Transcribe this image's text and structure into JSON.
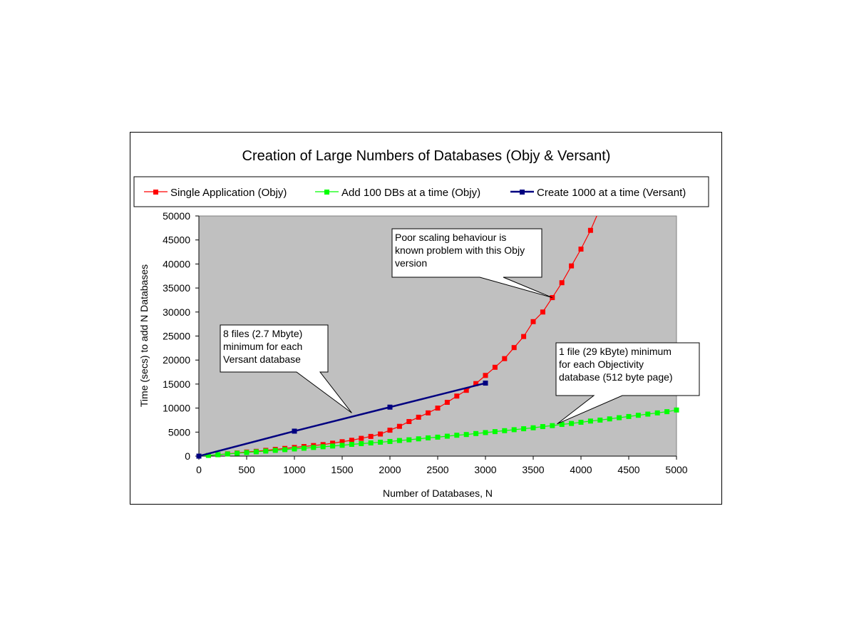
{
  "chart_data": {
    "type": "line",
    "title": "Creation of Large Numbers of Databases (Objy & Versant)",
    "xlabel": "Number of Databases, N",
    "ylabel": "Time (secs) to add N Databases",
    "xlim": [
      0,
      5000
    ],
    "ylim": [
      0,
      50000
    ],
    "x_ticks": [
      0,
      500,
      1000,
      1500,
      2000,
      2500,
      3000,
      3500,
      4000,
      4500,
      5000
    ],
    "y_ticks": [
      0,
      5000,
      10000,
      15000,
      20000,
      25000,
      30000,
      35000,
      40000,
      45000,
      50000
    ],
    "plot_background": "#c0c0c0",
    "legend_position": "top",
    "series": [
      {
        "name": "Single Application (Objy)",
        "color": "#ff0000",
        "marker": "square",
        "x": [
          0,
          100,
          200,
          300,
          400,
          500,
          600,
          700,
          800,
          900,
          1000,
          1100,
          1200,
          1300,
          1400,
          1500,
          1600,
          1700,
          1800,
          1900,
          2000,
          2100,
          2200,
          2300,
          2400,
          2500,
          2600,
          2700,
          2800,
          2900,
          3000,
          3100,
          3200,
          3300,
          3400,
          3500,
          3600,
          3700,
          3800,
          3900,
          4000,
          4100
        ],
        "y": [
          0,
          150,
          300,
          480,
          650,
          850,
          1000,
          1200,
          1400,
          1600,
          1800,
          2000,
          2200,
          2400,
          2700,
          3000,
          3300,
          3700,
          4100,
          4600,
          5400,
          6200,
          7200,
          8100,
          9000,
          10000,
          11200,
          12500,
          13700,
          15100,
          16800,
          18500,
          20300,
          22600,
          24900,
          28000,
          30000,
          33000,
          36100,
          39600,
          43100,
          47000
        ]
      },
      {
        "name": "Add 100 DBs at a time (Objy)",
        "color": "#00ff00",
        "marker": "square",
        "x": [
          0,
          100,
          200,
          300,
          400,
          500,
          600,
          700,
          800,
          900,
          1000,
          1100,
          1200,
          1300,
          1400,
          1500,
          1600,
          1700,
          1800,
          1900,
          2000,
          2100,
          2200,
          2300,
          2400,
          2500,
          2600,
          2700,
          2800,
          2900,
          3000,
          3100,
          3200,
          3300,
          3400,
          3500,
          3600,
          3700,
          3800,
          3900,
          4000,
          4100,
          4200,
          4300,
          4400,
          4500,
          4600,
          4700,
          4800,
          4900,
          5000
        ],
        "y": [
          0,
          150,
          300,
          450,
          600,
          750,
          900,
          1050,
          1200,
          1350,
          1500,
          1650,
          1800,
          1950,
          2100,
          2250,
          2450,
          2600,
          2750,
          2900,
          3050,
          3250,
          3400,
          3600,
          3800,
          3950,
          4150,
          4350,
          4500,
          4700,
          4900,
          5100,
          5300,
          5500,
          5700,
          5900,
          6150,
          6350,
          6600,
          6800,
          7050,
          7300,
          7500,
          7750,
          8000,
          8250,
          8500,
          8750,
          9000,
          9250,
          9600
        ]
      },
      {
        "name": "Create 1000 at a time (Versant)",
        "color": "#000080",
        "marker": "square",
        "x": [
          0,
          1000,
          2000,
          3000
        ],
        "y": [
          0,
          5200,
          10200,
          15200
        ]
      }
    ],
    "annotations": [
      {
        "id": "objy-scaling",
        "lines": [
          "Poor scaling behaviour is",
          "known problem with this Objy",
          "version"
        ],
        "points_to": [
          3700,
          33000
        ]
      },
      {
        "id": "versant-files",
        "lines": [
          "8 files (2.7 Mbyte)",
          "minimum for each",
          "Versant database"
        ],
        "points_to": [
          1600,
          9000
        ]
      },
      {
        "id": "objectivity-file",
        "lines": [
          "1 file (29 kByte) minimum",
          "for each Objectivity",
          "database (512 byte page)"
        ],
        "points_to": [
          3750,
          6700
        ]
      }
    ]
  }
}
